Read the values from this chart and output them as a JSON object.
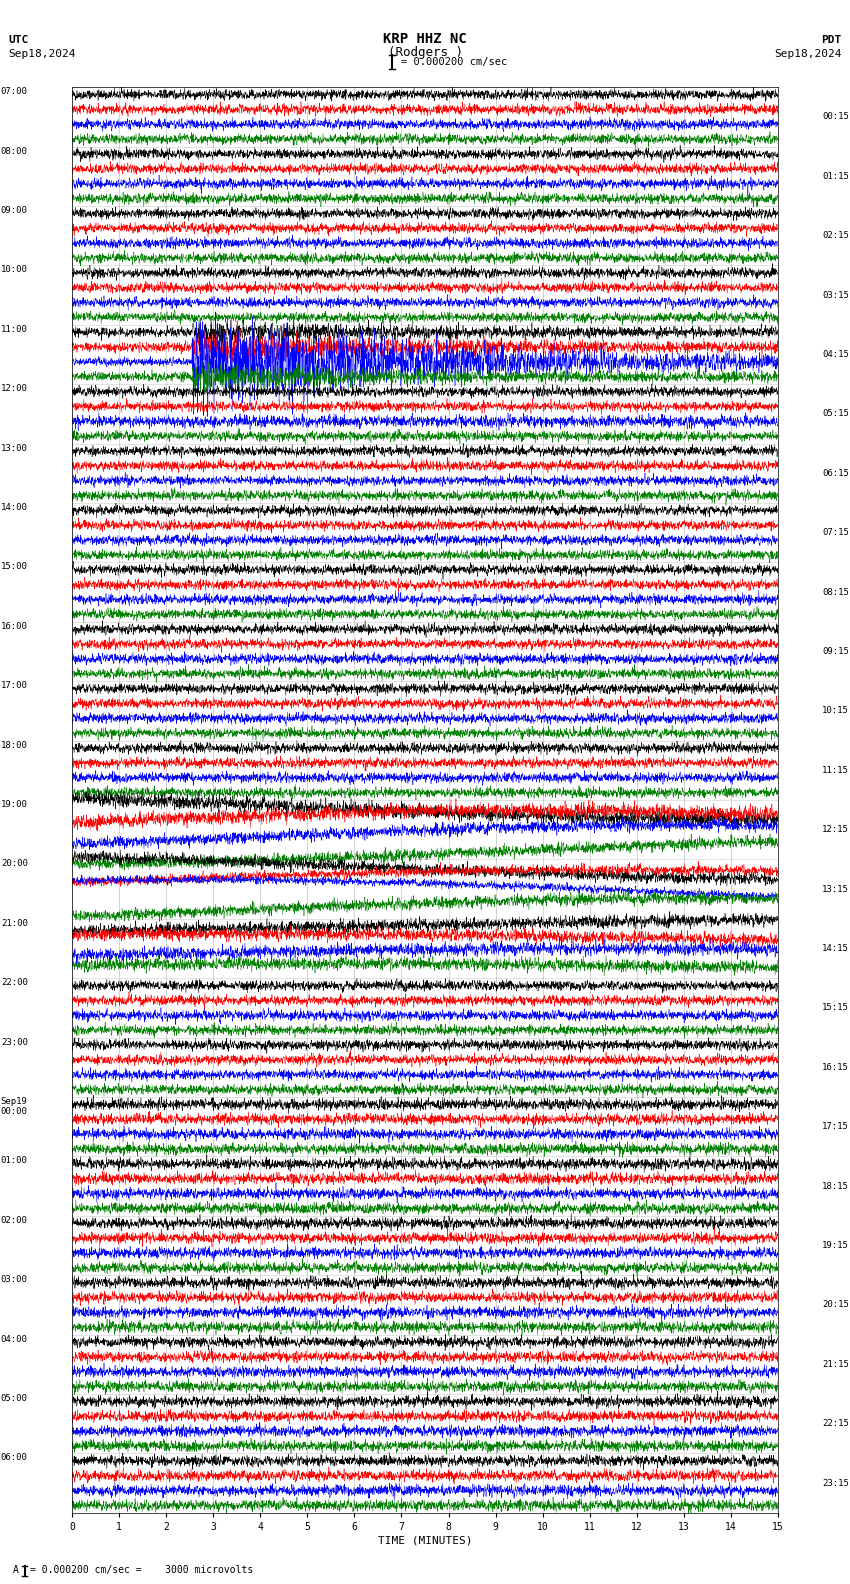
{
  "title_line1": "KRP HHZ NC",
  "title_line2": "(Rodgers )",
  "scale_label": "= 0.000200 cm/sec",
  "utc_label": "UTC",
  "date_left": "Sep18,2024",
  "date_right": "Sep18,2024",
  "pdt_label": "PDT",
  "footer_label": "= 0.000200 cm/sec =    3000 microvolts",
  "xlabel": "TIME (MINUTES)",
  "left_times": [
    "07:00",
    "08:00",
    "09:00",
    "10:00",
    "11:00",
    "12:00",
    "13:00",
    "14:00",
    "15:00",
    "16:00",
    "17:00",
    "18:00",
    "19:00",
    "20:00",
    "21:00",
    "22:00",
    "23:00",
    "Sep19\n00:00",
    "01:00",
    "02:00",
    "03:00",
    "04:00",
    "05:00",
    "06:00"
  ],
  "right_times": [
    "00:15",
    "01:15",
    "02:15",
    "03:15",
    "04:15",
    "05:15",
    "06:15",
    "07:15",
    "08:15",
    "09:15",
    "10:15",
    "11:15",
    "12:15",
    "13:15",
    "14:15",
    "15:15",
    "16:15",
    "17:15",
    "18:15",
    "19:15",
    "20:15",
    "21:15",
    "22:15",
    "23:15"
  ],
  "colors": [
    "black",
    "red",
    "blue",
    "green"
  ],
  "n_rows": 24,
  "n_traces_per_row": 4,
  "minutes_per_row": 15,
  "background_color": "white",
  "figwidth": 8.5,
  "figheight": 15.84,
  "dpi": 100
}
